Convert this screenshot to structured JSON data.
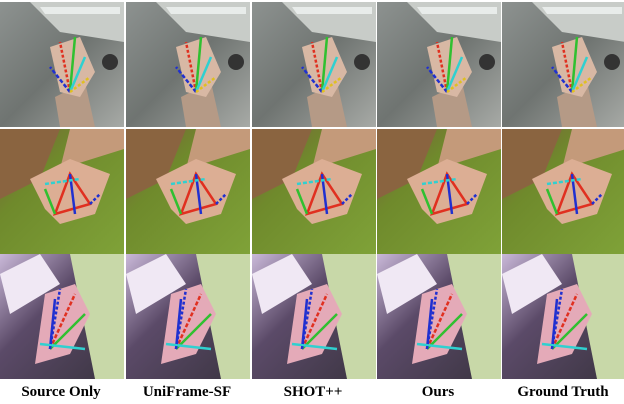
{
  "figure": {
    "columns": [
      "Source Only",
      "UniFrame-SF",
      "SHOT++",
      "Ours",
      "Ground Truth"
    ]
  }
}
